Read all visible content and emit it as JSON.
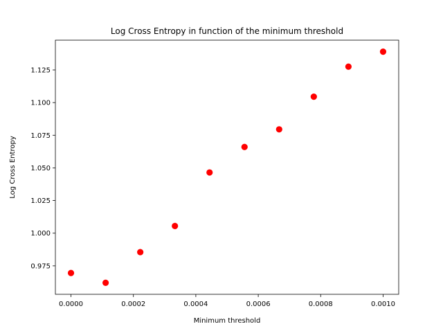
{
  "chart_data": {
    "type": "scatter",
    "title": "Log Cross Entropy in function of the minimum threshold",
    "xlabel": "Minimum threshold",
    "ylabel": "Log Cross Entropy",
    "x": [
      0.0,
      0.000111,
      0.000222,
      0.000333,
      0.000444,
      0.000556,
      0.000667,
      0.000778,
      0.000889,
      0.001
    ],
    "y": [
      0.9695,
      0.962,
      0.9855,
      1.0055,
      1.0465,
      1.066,
      1.0795,
      1.1045,
      1.1275,
      1.139
    ],
    "xlim": [
      -5e-05,
      0.00105
    ],
    "ylim": [
      0.9532,
      1.1478
    ],
    "x_ticks": [
      0.0,
      0.0002,
      0.0004,
      0.0006,
      0.0008,
      0.001
    ],
    "x_tick_labels": [
      "0.0000",
      "0.0002",
      "0.0004",
      "0.0006",
      "0.0008",
      "0.0010"
    ],
    "y_ticks": [
      0.975,
      1.0,
      1.025,
      1.05,
      1.075,
      1.1,
      1.125
    ],
    "y_tick_labels": [
      "0.975",
      "1.000",
      "1.025",
      "1.050",
      "1.075",
      "1.100",
      "1.125"
    ],
    "marker_color": "#ff0000",
    "grid": false,
    "legend": "none"
  }
}
